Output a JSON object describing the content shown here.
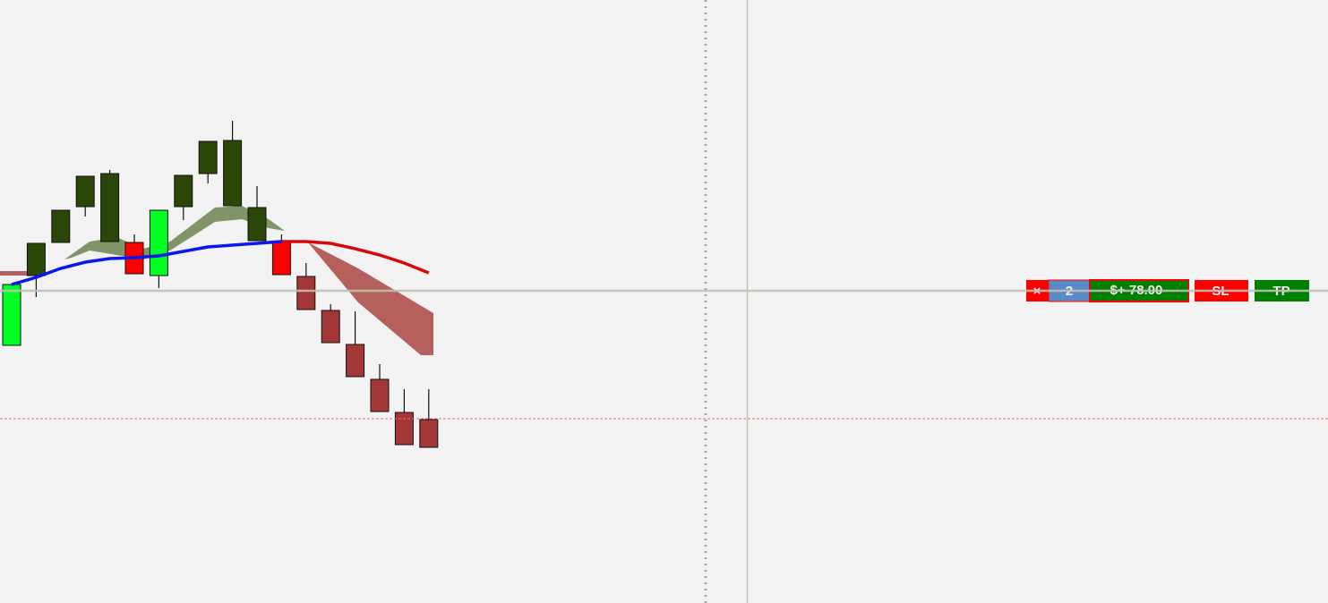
{
  "chart_data": {
    "type": "candlestick",
    "categories": [
      null,
      null,
      null,
      null,
      null,
      null,
      null,
      null,
      null,
      null,
      null,
      null,
      null,
      null,
      null,
      null,
      null,
      null
    ],
    "open": [
      61.4,
      69.2,
      72.9,
      76.9,
      73.0,
      72.9,
      69.2,
      76.9,
      80.6,
      77.0,
      73.1,
      72.9,
      69.1,
      65.3,
      61.5,
      57.6,
      53.9,
      53.1
    ],
    "close": [
      68.2,
      72.8,
      76.5,
      80.3,
      80.6,
      69.4,
      76.5,
      80.4,
      84.2,
      84.3,
      76.8,
      69.3,
      65.4,
      61.7,
      57.9,
      54.0,
      50.3,
      50.0
    ],
    "high": [
      68.2,
      72.8,
      76.5,
      80.3,
      81.0,
      73.8,
      76.5,
      80.4,
      84.2,
      86.5,
      79.2,
      73.8,
      70.6,
      66.0,
      65.2,
      59.3,
      56.5,
      56.5
    ],
    "low": [
      61.4,
      66.8,
      72.9,
      75.8,
      73.0,
      69.4,
      67.8,
      75.4,
      79.5,
      77.0,
      73.1,
      69.3,
      65.4,
      61.7,
      57.9,
      54.0,
      50.3,
      50.0
    ],
    "colors": [
      "#00ff22",
      "#2a4708",
      "#2a4708",
      "#2a4708",
      "#2a4708",
      "#ff0000",
      "#00ff22",
      "#2a4708",
      "#2a4708",
      "#2a4708",
      "#2a4708",
      "#ff0000",
      "#a33636",
      "#a33636",
      "#a33636",
      "#a33636",
      "#a33636",
      "#a33636"
    ],
    "series": [
      {
        "color": "#0a16f0",
        "values": [
          68.2,
          69.0,
          70.0,
          70.7,
          71.1,
          71.2,
          71.4,
          71.9,
          72.4,
          72.6,
          72.8,
          73.0,
          null,
          null,
          null,
          null,
          null,
          null
        ]
      },
      {
        "color": "#d40a0a",
        "values": [
          null,
          null,
          null,
          null,
          null,
          null,
          null,
          null,
          null,
          null,
          null,
          73.0,
          73.0,
          72.8,
          72.2,
          71.5,
          70.6,
          69.5
        ]
      }
    ],
    "hlines": [
      {
        "value": 67.5,
        "color": "#c0c0b4"
      },
      {
        "value": 53.2,
        "color": "#ff6b6b"
      }
    ],
    "ylim": [
      32.6,
      100
    ]
  },
  "order_panel": {
    "close": "×",
    "quantity": "2",
    "pnl": "$+ 78.00",
    "sl": "SL",
    "tp": "TP"
  }
}
